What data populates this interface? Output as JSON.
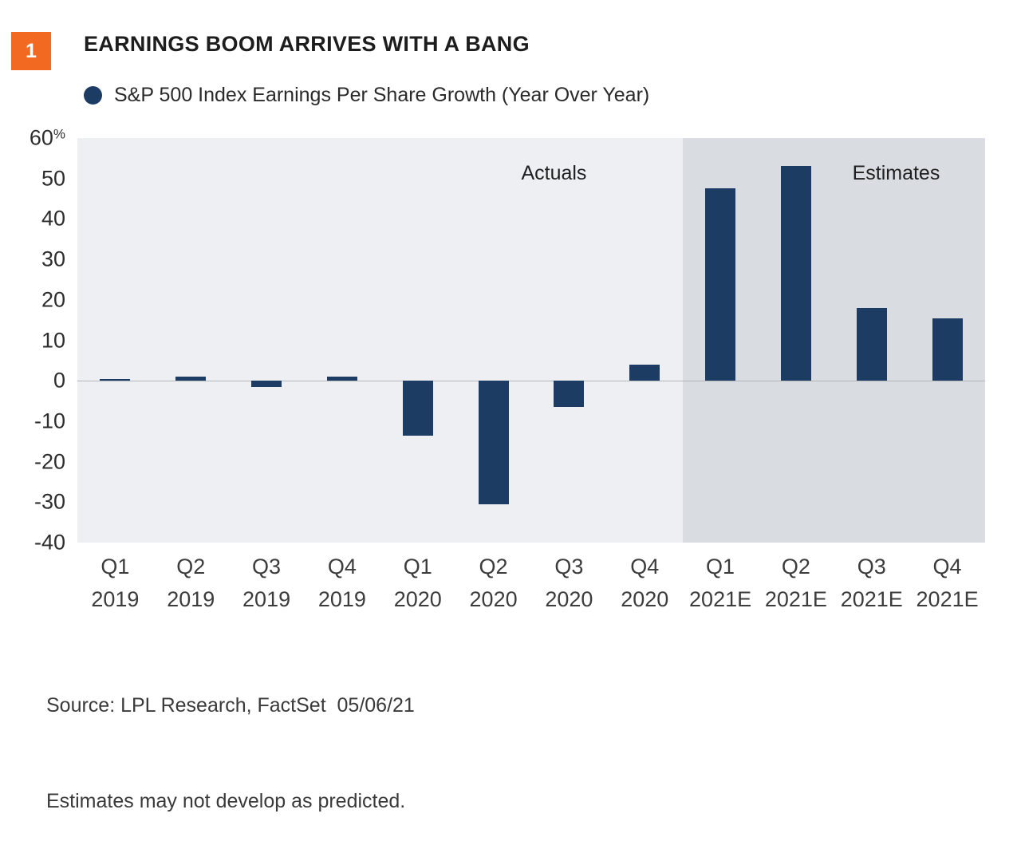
{
  "badge": {
    "number": "1",
    "color": "#f26a21"
  },
  "header": {
    "title": "EARNINGS BOOM ARRIVES WITH A BANG"
  },
  "legend": {
    "label": "S&P 500 Index Earnings Per Share Growth (Year Over Year)",
    "marker_color": "#1c3c64"
  },
  "chart_data": {
    "type": "bar",
    "title": "S&P 500 Index Earnings Per Share Growth (Year Over Year)",
    "categories": [
      {
        "quarter": "Q1",
        "year": "2019"
      },
      {
        "quarter": "Q2",
        "year": "2019"
      },
      {
        "quarter": "Q3",
        "year": "2019"
      },
      {
        "quarter": "Q4",
        "year": "2019"
      },
      {
        "quarter": "Q1",
        "year": "2020"
      },
      {
        "quarter": "Q2",
        "year": "2020"
      },
      {
        "quarter": "Q3",
        "year": "2020"
      },
      {
        "quarter": "Q4",
        "year": "2020"
      },
      {
        "quarter": "Q1",
        "year": "2021E"
      },
      {
        "quarter": "Q2",
        "year": "2021E"
      },
      {
        "quarter": "Q3",
        "year": "2021E"
      },
      {
        "quarter": "Q4",
        "year": "2021E"
      }
    ],
    "values": [
      0.5,
      1,
      -1.5,
      1,
      -13.5,
      -30.5,
      -6.5,
      4,
      47.5,
      53,
      18,
      15.5
    ],
    "ylim": [
      -40,
      60
    ],
    "yticks": [
      60,
      50,
      40,
      30,
      20,
      10,
      0,
      -10,
      -20,
      -30,
      -40
    ],
    "y_unit": "%",
    "bar_color": "#1c3c64",
    "grid": "zero-line-only",
    "regions": [
      {
        "label": "Actuals",
        "start_index": 0,
        "end_index": 7,
        "bg_color": "#edeff2"
      },
      {
        "label": "Estimates",
        "start_index": 8,
        "end_index": 11,
        "bg_color": "#d9dce1"
      }
    ]
  },
  "footer": {
    "source": "Source: LPL Research, FactSet  05/06/21",
    "disclaimer": "Estimates may not develop as predicted."
  }
}
